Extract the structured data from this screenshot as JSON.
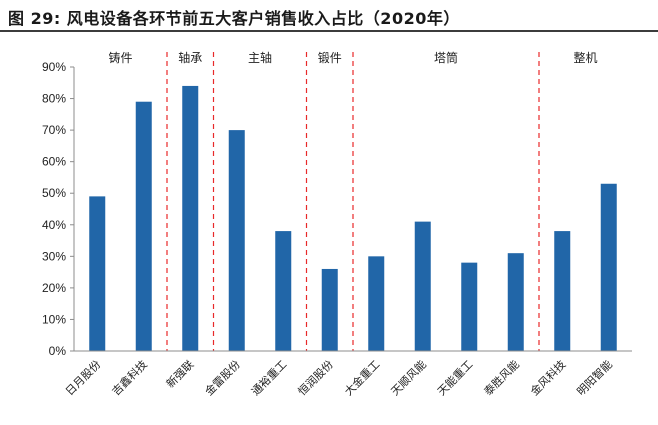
{
  "figure": {
    "title": "图 29: 风电设备各环节前五大客户销售收入占比（2020年）"
  },
  "chart_data": {
    "type": "bar",
    "categories": [
      "日月股份",
      "吉鑫科技",
      "新强联",
      "金雷股份",
      "通裕重工",
      "恒润股份",
      "大金重工",
      "天顺风能",
      "天能重工",
      "泰胜风能",
      "金风科技",
      "明阳智能"
    ],
    "values": [
      49,
      79,
      84,
      70,
      38,
      26,
      30,
      41,
      28,
      31,
      38,
      53
    ],
    "groups": [
      {
        "label": "铸件",
        "start": 0,
        "end": 1
      },
      {
        "label": "轴承",
        "start": 2,
        "end": 2
      },
      {
        "label": "主轴",
        "start": 3,
        "end": 4
      },
      {
        "label": "锻件",
        "start": 5,
        "end": 5
      },
      {
        "label": "塔筒",
        "start": 6,
        "end": 9
      },
      {
        "label": "整机",
        "start": 10,
        "end": 11
      }
    ],
    "ylim": [
      0,
      90
    ],
    "yticks": [
      "0%",
      "10%",
      "20%",
      "30%",
      "40%",
      "50%",
      "60%",
      "70%",
      "80%",
      "90%"
    ],
    "bar_color": "#2166a8",
    "separator_color": "#e8292a",
    "grid": false,
    "legend": "none"
  }
}
